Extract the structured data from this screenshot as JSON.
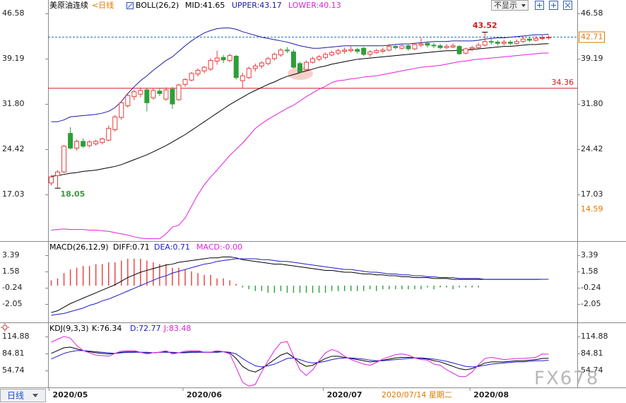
{
  "chart_data": [
    {
      "type": "candlestick",
      "title": "美原油连续",
      "period": "<日线",
      "indicator": "BOLL(26,2)",
      "categories": [
        "2020/05",
        null,
        null,
        null,
        null,
        null,
        null,
        null,
        null,
        null,
        null,
        null,
        null,
        null,
        null,
        null,
        null,
        null,
        null,
        null,
        null,
        "2020/06",
        null,
        null,
        null,
        null,
        null,
        null,
        null,
        null,
        null,
        null,
        null,
        null,
        null,
        null,
        null,
        null,
        null,
        null,
        null,
        null,
        null,
        "2020/07",
        null,
        null,
        null,
        null,
        null,
        null,
        null,
        null,
        null,
        null,
        null,
        null,
        null,
        null,
        null,
        null,
        null,
        null,
        null,
        null,
        null,
        null,
        "2020/08",
        null,
        null,
        null,
        null,
        null,
        null,
        null,
        null,
        null,
        null,
        null,
        null
      ],
      "open": [
        18.9,
        20.1,
        20.7,
        27.0,
        24.6,
        25.7,
        25.0,
        25.3,
        25.5,
        25.9,
        27.6,
        29.6,
        31.5,
        33.0,
        33.4,
        34.1,
        32.8,
        33.9,
        32.6,
        34.2,
        32.5,
        35.0,
        35.7,
        36.7,
        37.2,
        37.5,
        38.8,
        39.4,
        38.9,
        39.6,
        35.6,
        36.1,
        37.6,
        38.0,
        38.4,
        39.2,
        39.8,
        40.6,
        40.3,
        38.4,
        37.4,
        38.6,
        39.1,
        39.4,
        39.8,
        40.1,
        40.4,
        40.5,
        40.7,
        40.9,
        39.9,
        40.2,
        40.4,
        40.6,
        41.2,
        40.9,
        41.3,
        40.8,
        41.4,
        41.7,
        41.4,
        41.3,
        41.0,
        41.1,
        41.2,
        40.1,
        40.8,
        41.0,
        41.4,
        42.0,
        41.9,
        41.7,
        41.9,
        41.7,
        42.0,
        42.4,
        42.2,
        42.5,
        42.6
      ],
      "high": [
        20.2,
        21.0,
        25.1,
        28.0,
        26.0,
        26.2,
        25.9,
        26.0,
        26.3,
        28.3,
        30.0,
        32.3,
        33.6,
        34.1,
        34.5,
        34.3,
        34.3,
        34.4,
        34.5,
        34.6,
        35.1,
        36.0,
        37.0,
        37.6,
        38.0,
        39.3,
        40.5,
        39.8,
        40.0,
        39.8,
        36.9,
        37.9,
        38.4,
        38.8,
        39.5,
        40.2,
        40.9,
        41.1,
        40.7,
        38.7,
        38.9,
        39.5,
        39.8,
        40.2,
        40.5,
        40.8,
        41.0,
        41.2,
        41.0,
        41.1,
        40.6,
        40.8,
        41.0,
        41.6,
        41.5,
        41.7,
        41.5,
        41.8,
        42.6,
        42.0,
        41.8,
        41.6,
        41.6,
        41.7,
        41.4,
        41.0,
        41.3,
        41.8,
        43.52,
        42.4,
        42.2,
        42.3,
        42.2,
        42.3,
        42.8,
        42.7,
        42.9,
        43.0,
        43.0
      ],
      "low": [
        18.5,
        18.05,
        20.5,
        24.4,
        24.2,
        24.6,
        24.7,
        25.0,
        25.2,
        25.7,
        27.3,
        29.2,
        31.2,
        32.4,
        32.9,
        30.6,
        32.5,
        33.1,
        32.3,
        31.0,
        32.3,
        34.6,
        35.5,
        36.3,
        36.8,
        37.2,
        38.2,
        38.5,
        38.6,
        35.8,
        34.3,
        35.9,
        37.1,
        37.6,
        38.1,
        38.9,
        39.5,
        40.1,
        37.6,
        36.8,
        37.1,
        38.4,
        38.8,
        39.1,
        39.6,
        39.8,
        40.0,
        40.2,
        40.0,
        39.6,
        39.5,
        40.0,
        40.1,
        40.4,
        40.7,
        40.7,
        40.5,
        40.6,
        41.1,
        41.0,
        40.9,
        40.7,
        40.8,
        40.9,
        39.8,
        39.9,
        40.4,
        40.8,
        41.2,
        41.5,
        41.3,
        41.4,
        41.4,
        41.5,
        41.8,
        41.9,
        42.0,
        42.2,
        42.3
      ],
      "close": [
        19.9,
        20.7,
        24.9,
        24.6,
        25.7,
        24.9,
        25.6,
        25.7,
        26.1,
        27.8,
        29.7,
        32.0,
        33.2,
        33.8,
        34.0,
        32.0,
        34.0,
        33.5,
        34.1,
        31.8,
        34.9,
        35.8,
        36.8,
        37.3,
        37.8,
        38.9,
        39.3,
        39.0,
        39.7,
        36.1,
        36.4,
        37.6,
        38.0,
        38.5,
        39.2,
        39.9,
        40.6,
        40.5,
        37.8,
        37.0,
        38.6,
        39.2,
        39.5,
        39.9,
        40.2,
        40.5,
        40.6,
        40.7,
        40.4,
        39.9,
        40.3,
        40.5,
        40.6,
        41.2,
        41.0,
        41.3,
        40.8,
        41.5,
        41.6,
        41.4,
        41.3,
        41.0,
        41.2,
        41.3,
        40.0,
        40.8,
        41.0,
        41.4,
        42.0,
        41.9,
        41.7,
        41.9,
        41.7,
        42.0,
        42.4,
        42.2,
        42.5,
        42.6,
        42.71
      ],
      "up_color": "#e83c3c",
      "down_color": "#2e9e3a",
      "series": [
        {
          "name": "MID:41.65",
          "color": "#000000",
          "values": [
            20.0,
            20.1,
            20.3,
            20.5,
            20.6,
            20.8,
            20.9,
            21.0,
            21.2,
            21.4,
            21.6,
            21.9,
            22.3,
            22.7,
            23.1,
            23.5,
            24.0,
            24.5,
            25.0,
            25.6,
            26.2,
            26.8,
            27.5,
            28.2,
            28.9,
            29.6,
            30.3,
            31.0,
            31.7,
            32.3,
            32.9,
            33.5,
            34.0,
            34.5,
            35.0,
            35.4,
            35.9,
            36.3,
            36.6,
            36.9,
            37.2,
            37.5,
            37.8,
            38.0,
            38.3,
            38.5,
            38.7,
            38.9,
            39.1,
            39.2,
            39.3,
            39.4,
            39.5,
            39.6,
            39.7,
            39.8,
            39.9,
            40.0,
            40.1,
            40.2,
            40.3,
            40.4,
            40.5,
            40.5,
            40.6,
            40.6,
            40.7,
            40.8,
            40.9,
            41.0,
            41.1,
            41.2,
            41.2,
            41.3,
            41.4,
            41.5,
            41.5,
            41.6,
            41.65
          ]
        },
        {
          "name": "UPPER:43.17",
          "color": "#1a1aa8",
          "values": [
            28.9,
            28.9,
            29.2,
            29.7,
            29.8,
            29.9,
            30.0,
            30.1,
            30.3,
            30.6,
            31.2,
            32.2,
            33.5,
            34.6,
            35.6,
            36.4,
            37.3,
            38.1,
            38.9,
            39.5,
            40.4,
            41.3,
            42.1,
            42.8,
            43.4,
            43.8,
            44.1,
            44.2,
            44.2,
            44.0,
            43.6,
            43.3,
            43.0,
            42.7,
            42.5,
            42.3,
            42.1,
            41.9,
            41.6,
            41.3,
            41.1,
            40.9,
            40.9,
            41.0,
            41.1,
            41.2,
            41.3,
            41.3,
            41.3,
            41.3,
            41.3,
            41.3,
            41.3,
            41.4,
            41.5,
            41.6,
            41.6,
            41.7,
            41.8,
            41.9,
            42.0,
            42.0,
            42.0,
            42.1,
            42.1,
            42.1,
            42.1,
            42.2,
            42.4,
            42.5,
            42.6,
            42.6,
            42.7,
            42.8,
            42.9,
            43.0,
            43.1,
            43.1,
            43.17
          ]
        },
        {
          "name": "LOWER:40.13",
          "color": "#e020e0",
          "values": [
            11.2,
            11.3,
            11.4,
            11.3,
            11.3,
            11.3,
            11.2,
            11.2,
            11.1,
            11.0,
            10.8,
            10.6,
            10.4,
            10.1,
            9.9,
            9.8,
            9.8,
            9.8,
            10.6,
            11.7,
            12.0,
            13.2,
            15.1,
            17.0,
            18.6,
            19.9,
            21.0,
            22.2,
            23.4,
            24.4,
            25.4,
            26.6,
            27.8,
            28.6,
            29.3,
            29.9,
            30.5,
            31.1,
            31.6,
            32.3,
            33.0,
            33.6,
            34.2,
            34.7,
            35.3,
            35.6,
            35.7,
            35.9,
            36.0,
            36.2,
            36.3,
            36.4,
            36.6,
            36.8,
            37.0,
            37.2,
            37.4,
            37.6,
            37.8,
            37.9,
            38.0,
            38.1,
            38.3,
            38.5,
            38.7,
            38.8,
            39.0,
            39.1,
            39.2,
            39.3,
            39.4,
            39.5,
            39.6,
            39.7,
            39.8,
            39.9,
            40.0,
            40.1,
            40.13
          ]
        }
      ],
      "ylim": [
        9.53,
        47.62
      ],
      "yticks": [
        46.58,
        39.19,
        {
          "value": 31.8,
          "label": "31.80"
        },
        24.42,
        17.03
      ],
      "high_label": 43.52,
      "low_label": 18.05,
      "level_line": 34.36,
      "last_price": 42.71,
      "range_low": 14.59,
      "level_color": "#d01818",
      "last_color": "#e07800"
    },
    {
      "type": "macd",
      "title": "MACD(26,12,9)",
      "series": [
        {
          "name": "DIFF:0.71",
          "color": "#000000",
          "values": [
            -3.0,
            -2.8,
            -2.4,
            -2.0,
            -1.7,
            -1.4,
            -1.1,
            -0.8,
            -0.5,
            -0.2,
            0.1,
            0.5,
            0.9,
            1.2,
            1.5,
            1.7,
            1.9,
            2.1,
            2.3,
            2.4,
            2.6,
            2.7,
            2.8,
            2.9,
            3.0,
            3.1,
            3.1,
            3.2,
            3.2,
            3.1,
            2.9,
            2.8,
            2.7,
            2.6,
            2.5,
            2.4,
            2.4,
            2.3,
            2.2,
            2.1,
            2.0,
            1.9,
            1.8,
            1.7,
            1.7,
            1.6,
            1.5,
            1.5,
            1.4,
            1.3,
            1.3,
            1.2,
            1.2,
            1.1,
            1.1,
            1.0,
            1.0,
            0.9,
            0.9,
            0.9,
            0.8,
            0.8,
            0.8,
            0.7,
            0.7,
            0.7,
            0.7,
            0.7,
            0.7,
            0.7,
            0.7,
            0.7,
            0.7,
            0.7,
            0.7,
            0.7,
            0.7,
            0.71,
            0.71
          ]
        },
        {
          "name": "DEA:0.71",
          "color": "#1a1acc",
          "values": [
            -3.3,
            -3.2,
            -3.1,
            -2.9,
            -2.7,
            -2.5,
            -2.2,
            -2.0,
            -1.7,
            -1.5,
            -1.2,
            -0.9,
            -0.6,
            -0.3,
            0.0,
            0.3,
            0.6,
            0.9,
            1.1,
            1.4,
            1.6,
            1.8,
            2.0,
            2.2,
            2.4,
            2.5,
            2.7,
            2.8,
            2.9,
            3.0,
            3.0,
            3.0,
            3.0,
            2.9,
            2.9,
            2.8,
            2.7,
            2.7,
            2.6,
            2.5,
            2.4,
            2.3,
            2.2,
            2.1,
            2.0,
            1.9,
            1.8,
            1.8,
            1.7,
            1.6,
            1.5,
            1.5,
            1.4,
            1.3,
            1.3,
            1.2,
            1.2,
            1.1,
            1.1,
            1.0,
            1.0,
            0.9,
            0.9,
            0.9,
            0.8,
            0.8,
            0.8,
            0.8,
            0.7,
            0.7,
            0.7,
            0.7,
            0.7,
            0.7,
            0.7,
            0.7,
            0.7,
            0.71,
            0.71
          ]
        }
      ],
      "histogram": {
        "name": "MACD:-0.00",
        "color": "#e020e0",
        "up_color": "#e83c3c",
        "down_color": "#2e9e3a",
        "values": [
          0.6,
          0.8,
          1.4,
          1.8,
          2.0,
          2.2,
          2.2,
          2.4,
          2.4,
          2.6,
          2.6,
          2.8,
          3.0,
          3.0,
          3.0,
          2.8,
          2.6,
          2.4,
          2.4,
          2.0,
          2.0,
          1.8,
          1.6,
          1.4,
          1.2,
          1.2,
          0.8,
          0.8,
          0.6,
          0.2,
          -0.2,
          -0.4,
          -0.6,
          -0.6,
          -0.8,
          -0.8,
          -0.6,
          -0.8,
          -0.8,
          -0.8,
          -0.8,
          -0.8,
          -0.8,
          -0.8,
          -0.6,
          -0.6,
          -0.6,
          -0.6,
          -0.6,
          -0.6,
          -0.4,
          -0.6,
          -0.4,
          -0.4,
          -0.4,
          -0.4,
          -0.4,
          -0.4,
          -0.4,
          -0.2,
          -0.4,
          -0.2,
          -0.2,
          -0.4,
          -0.2,
          -0.2,
          -0.2,
          -0.2,
          0.0,
          0.0,
          0.0,
          0.0,
          0.0,
          0.0,
          0.0,
          0.0,
          0.0,
          0.0,
          -0.002
        ]
      },
      "ylim": [
        -4.02,
        4.81
      ],
      "yticks": [
        3.39,
        1.58,
        -0.24,
        -2.05
      ]
    },
    {
      "type": "line",
      "title": "KDJ(9,3,3)",
      "series": [
        {
          "name": "K:76.34",
          "color": "#000000",
          "values": [
            85,
            90,
            95,
            96,
            93,
            90,
            88,
            86,
            85,
            84,
            85,
            87,
            88,
            88,
            87,
            86,
            86,
            87,
            88,
            86,
            86,
            87,
            88,
            88,
            87,
            87,
            88,
            88,
            86,
            76,
            62,
            55,
            52,
            58,
            66,
            74,
            82,
            86,
            78,
            68,
            62,
            64,
            70,
            76,
            80,
            80,
            78,
            76,
            74,
            72,
            70,
            71,
            73,
            75,
            77,
            78,
            78,
            77,
            76,
            75,
            72,
            70,
            66,
            62,
            58,
            56,
            58,
            63,
            68,
            70,
            70,
            70,
            71,
            72,
            72,
            73,
            74,
            76,
            76.34
          ]
        },
        {
          "name": "D:72.77",
          "color": "#1a1acc",
          "values": [
            75,
            80,
            85,
            88,
            90,
            90,
            89,
            88,
            87,
            86,
            85,
            86,
            87,
            87,
            87,
            87,
            86,
            87,
            87,
            87,
            86,
            86,
            87,
            87,
            87,
            87,
            87,
            88,
            87,
            84,
            76,
            69,
            63,
            61,
            63,
            66,
            71,
            76,
            77,
            74,
            70,
            68,
            69,
            71,
            74,
            76,
            77,
            77,
            76,
            75,
            73,
            72,
            72,
            73,
            74,
            75,
            76,
            77,
            77,
            76,
            75,
            73,
            71,
            68,
            65,
            62,
            61,
            62,
            64,
            66,
            67,
            68,
            69,
            70,
            70,
            71,
            72,
            72,
            72.77
          ]
        },
        {
          "name": "J:83.48",
          "color": "#e020e0",
          "values": [
            105,
            110,
            115,
            112,
            99,
            90,
            86,
            82,
            81,
            80,
            85,
            89,
            90,
            90,
            87,
            84,
            86,
            87,
            90,
            84,
            86,
            89,
            90,
            90,
            87,
            87,
            90,
            88,
            84,
            60,
            34,
            27,
            30,
            52,
            72,
            90,
            104,
            106,
            80,
            56,
            46,
            56,
            72,
            86,
            92,
            88,
            80,
            74,
            70,
            66,
            64,
            69,
            75,
            79,
            83,
            84,
            82,
            77,
            74,
            73,
            66,
            64,
            56,
            50,
            44,
            44,
            52,
            65,
            76,
            78,
            76,
            74,
            75,
            76,
            76,
            77,
            78,
            84,
            83.48
          ]
        }
      ],
      "ylim": [
        24.7,
        137.4
      ],
      "yticks": [
        114.88,
        84.81,
        54.74
      ]
    }
  ],
  "ui": {
    "dropdown": "不显示",
    "period_tab": "日线",
    "cursor_date": "2020/07/14 星期二",
    "watermark": "FX678"
  }
}
